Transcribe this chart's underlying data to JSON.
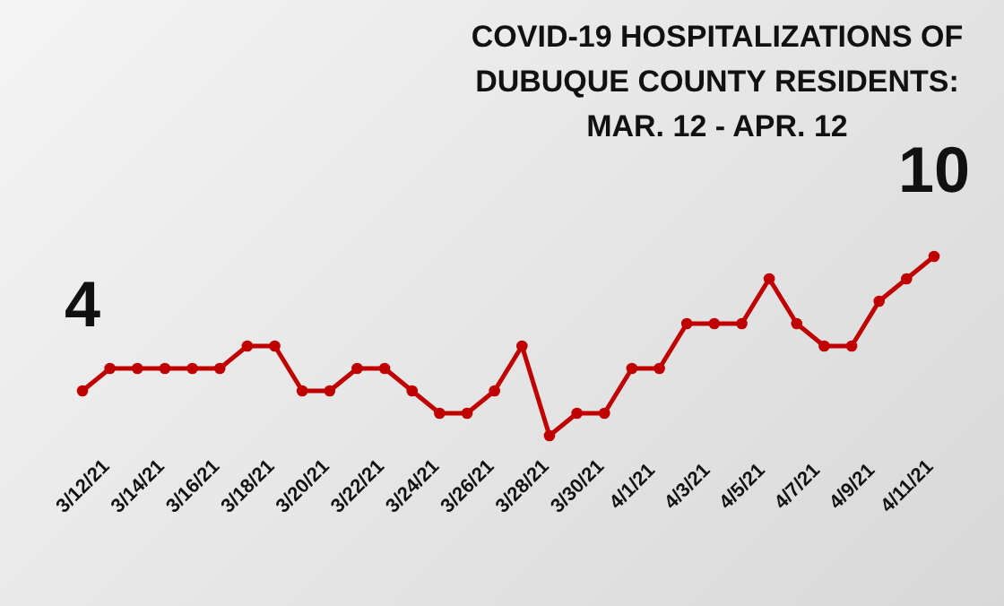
{
  "chart_data": {
    "type": "line",
    "title": "COVID-19 HOSPITALIZATIONS OF DUBUQUE COUNTY RESIDENTS: MAR. 12 - APR. 12",
    "categories": [
      "3/12/21",
      null,
      "3/14/21",
      null,
      "3/16/21",
      null,
      "3/18/21",
      null,
      "3/20/21",
      null,
      "3/22/21",
      null,
      "3/24/21",
      null,
      "3/26/21",
      null,
      "3/28/21",
      null,
      "3/30/21",
      null,
      "4/1/21",
      null,
      "4/3/21",
      null,
      "4/5/21",
      null,
      "4/7/21",
      null,
      "4/9/21",
      null,
      "4/11/21",
      null
    ],
    "series": [
      {
        "color": "#c00000",
        "values": [
          4,
          5,
          5,
          5,
          5,
          5,
          6,
          6,
          4,
          4,
          5,
          5,
          4,
          3,
          3,
          4,
          6,
          2,
          3,
          3,
          5,
          5,
          7,
          7,
          7,
          9,
          7,
          6,
          6,
          8,
          9,
          10
        ],
        "value_labels": [
          "4",
          null,
          null,
          null,
          null,
          null,
          null,
          null,
          null,
          null,
          null,
          null,
          null,
          null,
          null,
          null,
          null,
          null,
          null,
          null,
          null,
          null,
          null,
          null,
          null,
          null,
          null,
          null,
          null,
          null,
          null,
          "10"
        ]
      }
    ],
    "marker": "circle",
    "line_style": "solid",
    "grid": false
  }
}
